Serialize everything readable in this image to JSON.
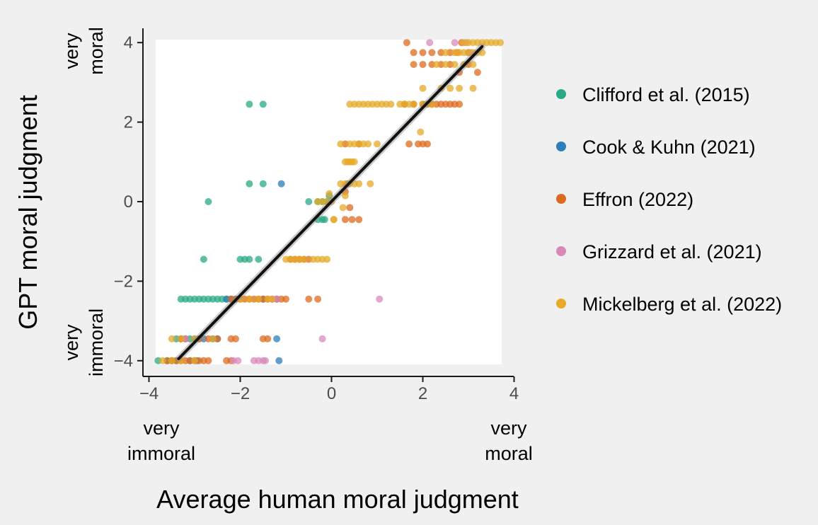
{
  "chart_data": {
    "type": "scatter",
    "xlabel": "Average human moral judgment",
    "ylabel": "GPT moral judgment",
    "xlim": [
      -4.2,
      4.0
    ],
    "ylim": [
      -4.4,
      4.3
    ],
    "x_ticks": [
      -4,
      -2,
      0,
      2,
      4
    ],
    "y_ticks": [
      -4,
      -2,
      0,
      2,
      4
    ],
    "x_tick_labels": [
      "−4",
      "−2",
      "0",
      "2",
      "4"
    ],
    "y_tick_labels": [
      "−4",
      "−2",
      "0",
      "2",
      "4"
    ],
    "x_anchor_low": [
      "very",
      "immoral"
    ],
    "x_anchor_high": [
      "very",
      "moral"
    ],
    "y_anchor_low": [
      "very",
      "immoral"
    ],
    "y_anchor_high": [
      "very",
      "moral"
    ],
    "grid": false,
    "legend_position": "right",
    "regression_line": {
      "x": [
        -3.35,
        3.3
      ],
      "y": [
        -3.95,
        3.9
      ],
      "color": "#111111"
    },
    "series": [
      {
        "name": "Clifford et al. (2015)",
        "color": "#2aa987",
        "x": [
          -1.8,
          -1.5,
          -1.8,
          -1.5,
          -2.7,
          -2.8,
          -2.0,
          -1.9,
          -1.6,
          -1.8,
          -0.5,
          -0.3,
          -0.2,
          -0.1,
          -0.05,
          -0.2,
          -0.15,
          -0.3,
          -3.3,
          -3.2,
          -3.1,
          -3.0,
          -2.9,
          -2.8,
          -2.7,
          -2.6,
          -2.5,
          -2.4,
          -2.3,
          -3.4,
          -3.3,
          -3.2,
          -3.1,
          -3.0,
          -2.9,
          -3.8,
          -3.6,
          -3.5,
          -3.4
        ],
        "y": [
          2.45,
          2.45,
          0.45,
          0.45,
          0.0,
          -1.45,
          -1.45,
          -1.45,
          -1.45,
          -1.45,
          0.0,
          0.0,
          0.0,
          0.0,
          0.15,
          -0.45,
          -0.45,
          -0.45,
          -2.45,
          -2.45,
          -2.45,
          -2.45,
          -2.45,
          -2.45,
          -2.45,
          -2.45,
          -2.45,
          -2.45,
          -2.45,
          -3.45,
          -3.45,
          -3.45,
          -3.45,
          -3.45,
          -3.45,
          -4.0,
          -4.0,
          -4.0,
          -4.0
        ]
      },
      {
        "name": "Cook & Kuhn (2021)",
        "color": "#2b7fbb",
        "x": [
          -1.1,
          -1.15,
          -2.3,
          -2.2,
          -2.1,
          -1.5,
          -1.2,
          -1.2,
          -2.8,
          -2.6,
          -2.5,
          -3.1,
          -2.95
        ],
        "y": [
          0.45,
          -4.0,
          -2.45,
          -2.45,
          -2.45,
          -2.45,
          -2.45,
          -3.45,
          -3.45,
          -3.45,
          -3.45,
          -4.0,
          -4.0
        ]
      },
      {
        "name": "Effron (2022)",
        "color": "#dd6b1f",
        "x": [
          1.65,
          1.8,
          2.0,
          2.2,
          2.4,
          2.6,
          2.75,
          2.85,
          3.0,
          1.8,
          2.0,
          2.2,
          2.4,
          2.6,
          2.8,
          3.0,
          3.2,
          1.6,
          1.8,
          2.0,
          2.1,
          2.2,
          2.3,
          2.4,
          2.5,
          2.6,
          2.7,
          2.8,
          1.7,
          1.9,
          2.0,
          2.1,
          0.3,
          0.6,
          0.35,
          0.3,
          0.4,
          0.45,
          0.3,
          0.6,
          -0.9,
          -0.8,
          -0.7,
          -0.6,
          -0.5,
          -2.2,
          -2.1,
          -2.0,
          -1.9,
          -1.8,
          -1.7,
          -1.6,
          -1.5,
          -1.4,
          -1.3,
          -1.2,
          -1.1,
          -1.0,
          -0.5,
          -0.3,
          -3.3,
          -3.2,
          -2.9,
          -2.7,
          -2.5,
          -2.2,
          -2.1,
          -1.5,
          -1.4,
          -3.6,
          -3.5,
          -3.4,
          -3.3,
          -3.2,
          -3.1,
          -3.0,
          -2.9,
          -2.8,
          -2.7,
          -2.3,
          -2.2
        ],
        "y": [
          4.0,
          3.75,
          3.75,
          3.75,
          3.75,
          3.75,
          3.75,
          4.0,
          3.75,
          3.45,
          3.45,
          3.45,
          3.45,
          3.45,
          3.25,
          3.45,
          3.25,
          2.45,
          2.45,
          2.45,
          2.45,
          2.45,
          2.45,
          2.45,
          2.45,
          2.45,
          2.45,
          2.45,
          1.45,
          1.45,
          1.45,
          1.45,
          1.45,
          1.45,
          0.45,
          0.25,
          -0.15,
          -0.45,
          -0.45,
          -0.45,
          -1.45,
          -1.45,
          -1.45,
          -1.45,
          -1.45,
          -2.45,
          -2.45,
          -2.45,
          -2.45,
          -2.45,
          -2.45,
          -2.45,
          -2.45,
          -2.45,
          -2.45,
          -2.45,
          -2.45,
          -2.45,
          -2.45,
          -2.45,
          -3.45,
          -3.45,
          -3.45,
          -3.45,
          -3.45,
          -3.45,
          -3.45,
          -3.45,
          -3.45,
          -4.0,
          -4.0,
          -4.0,
          -4.0,
          -4.0,
          -4.0,
          -4.0,
          -4.0,
          -4.0,
          -4.0,
          -4.0,
          -4.0
        ]
      },
      {
        "name": "Grizzard et al. (2021)",
        "color": "#d889b8",
        "x": [
          2.15,
          2.7,
          2.95,
          3.05,
          1.05,
          -0.2,
          -1.7,
          -1.6,
          -1.5,
          -1.45,
          -2.15,
          -2.05,
          -1.3,
          -1.2,
          -3.2
        ],
        "y": [
          4.0,
          4.0,
          4.0,
          3.75,
          -2.45,
          -3.45,
          -4.0,
          -4.0,
          -4.0,
          -4.0,
          -4.0,
          -4.0,
          -2.45,
          -2.45,
          -3.45
        ]
      },
      {
        "name": "Mickelberg et al. (2022)",
        "color": "#e6a928",
        "x": [
          2.9,
          3.0,
          3.1,
          3.2,
          3.3,
          3.4,
          3.5,
          3.6,
          3.7,
          2.5,
          2.7,
          2.8,
          2.9,
          3.0,
          3.1,
          3.2,
          3.3,
          2.3,
          2.5,
          2.7,
          2.9,
          3.1,
          2.0,
          2.4,
          2.6,
          2.8,
          3.1,
          0.4,
          0.5,
          0.6,
          0.7,
          0.8,
          0.9,
          1.0,
          1.1,
          1.2,
          1.3,
          1.5,
          1.6,
          1.7,
          1.8,
          2.0,
          2.2,
          1.95,
          0.2,
          0.4,
          0.5,
          0.6,
          0.7,
          0.8,
          1.0,
          0.3,
          0.35,
          0.4,
          0.45,
          0.5,
          0.2,
          0.3,
          0.4,
          0.5,
          0.6,
          0.85,
          0.3,
          0.25,
          0.05,
          -0.3,
          -0.2,
          -0.1,
          0.0,
          -0.05,
          0.05,
          -1.0,
          -0.9,
          -0.8,
          -0.7,
          -0.6,
          -0.4,
          -0.3,
          -0.2,
          -0.1,
          -2.0,
          -1.8,
          -1.6,
          -1.4,
          -1.3,
          -3.5,
          -3.3,
          -3.0,
          -2.6,
          -3.7,
          -3.5,
          -3.3,
          -3.0
        ],
        "y": [
          4.0,
          4.0,
          4.0,
          4.0,
          4.0,
          4.0,
          4.0,
          4.0,
          4.0,
          3.75,
          3.75,
          3.75,
          3.75,
          3.75,
          3.75,
          3.75,
          3.75,
          3.45,
          3.45,
          3.45,
          3.45,
          3.45,
          2.85,
          2.85,
          2.85,
          2.85,
          2.85,
          2.45,
          2.45,
          2.45,
          2.45,
          2.45,
          2.45,
          2.45,
          2.45,
          2.45,
          2.45,
          2.45,
          2.45,
          2.45,
          2.45,
          2.45,
          2.45,
          1.75,
          1.45,
          1.45,
          1.45,
          1.45,
          1.45,
          1.45,
          1.45,
          1.0,
          1.0,
          1.0,
          1.0,
          1.0,
          0.45,
          0.45,
          0.45,
          0.45,
          0.45,
          0.45,
          0.15,
          -0.15,
          -0.45,
          0.0,
          0.0,
          0.0,
          0.0,
          0.2,
          -0.45,
          -1.45,
          -1.45,
          -1.45,
          -1.45,
          -1.45,
          -1.45,
          -1.45,
          -1.45,
          -1.45,
          -2.45,
          -2.45,
          -2.45,
          -2.45,
          -2.45,
          -3.45,
          -3.45,
          -3.45,
          -3.45,
          -4.0,
          -4.0,
          -4.0,
          -4.0
        ]
      }
    ]
  }
}
